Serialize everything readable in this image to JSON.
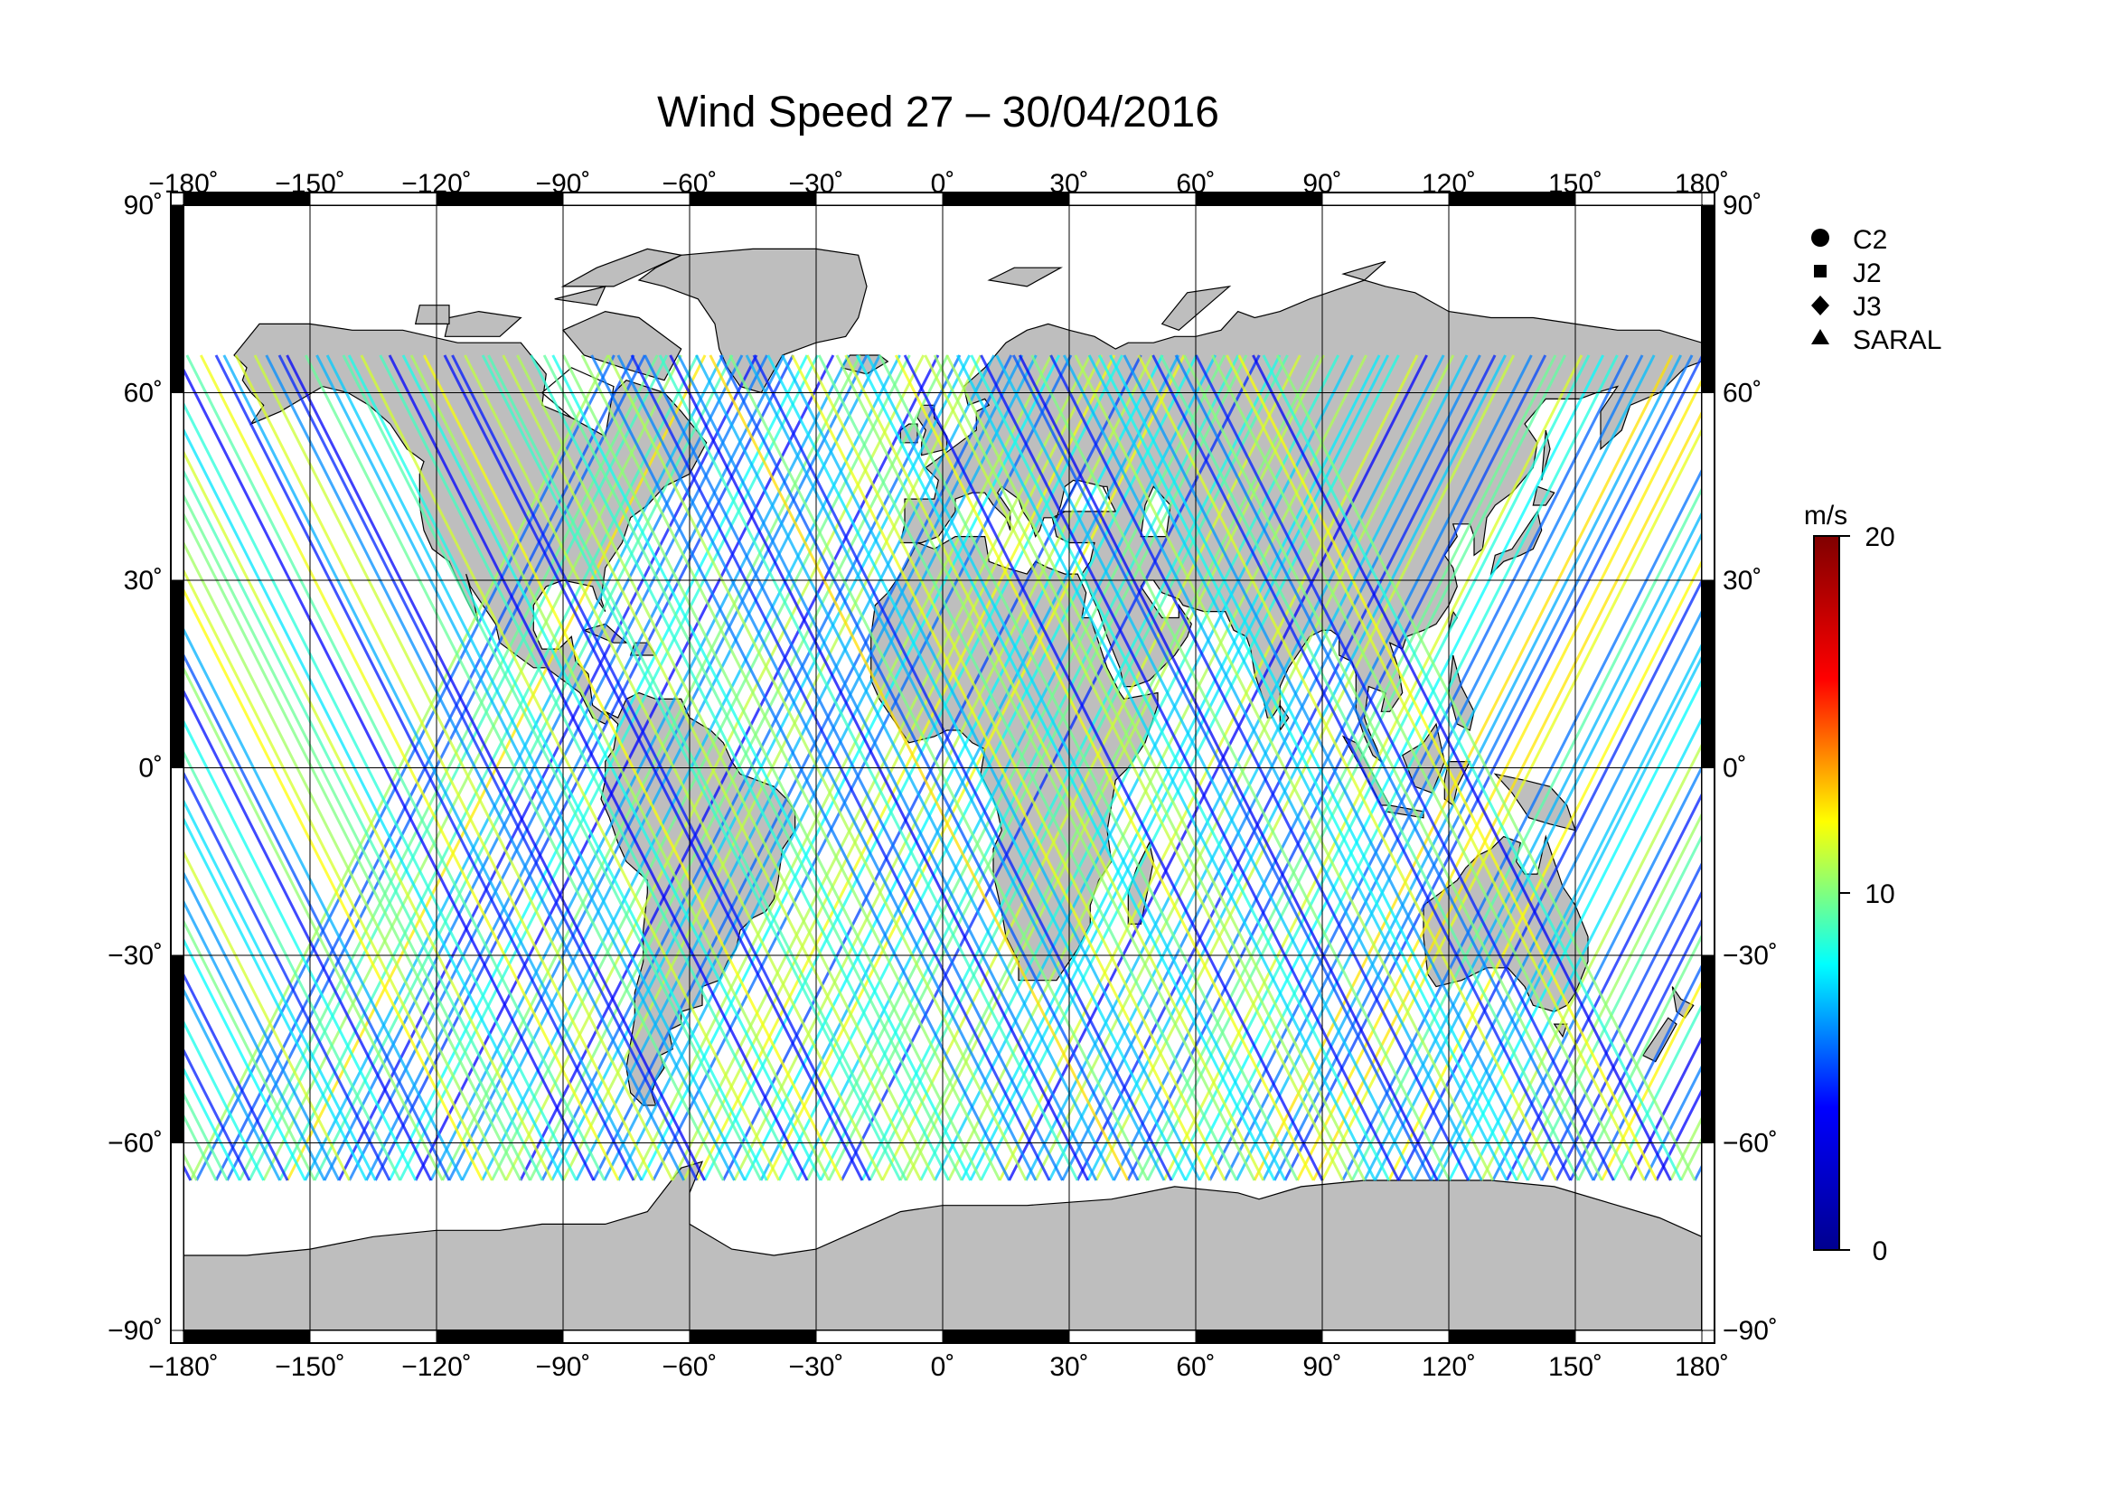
{
  "chart_data": {
    "type": "map",
    "title": "Wind Speed 27 – 30/04/2016",
    "projection": "equirectangular",
    "lon_ticks": [
      -180,
      -150,
      -120,
      -90,
      -60,
      -30,
      0,
      30,
      60,
      90,
      120,
      150,
      180
    ],
    "lat_ticks": [
      90,
      60,
      30,
      0,
      -30,
      -60,
      -90
    ],
    "lon_tick_labels": [
      "−180˚",
      "−150˚",
      "−120˚",
      "−90˚",
      "−60˚",
      "−30˚",
      "0˚",
      "30˚",
      "60˚",
      "90˚",
      "120˚",
      "150˚",
      "180˚"
    ],
    "lat_tick_labels": [
      "90˚",
      "60˚",
      "30˚",
      "0˚",
      "−30˚",
      "−60˚",
      "−90˚"
    ],
    "lon_range": [
      -180,
      180
    ],
    "lat_range": [
      -90,
      90
    ],
    "grid": true,
    "land_color": "#bebebe",
    "legend_position": "top-right",
    "legend": [
      {
        "name": "C2",
        "marker": "circle"
      },
      {
        "name": "J2",
        "marker": "square"
      },
      {
        "name": "J3",
        "marker": "diamond"
      },
      {
        "name": "SARAL",
        "marker": "triangle"
      }
    ],
    "colorbar": {
      "unit": "m/s",
      "min": 0,
      "max": 20,
      "tick_values": [
        0,
        10,
        20
      ],
      "tick_labels": [
        "0",
        "10",
        "20"
      ],
      "colormap": "jet",
      "colors": [
        "#00008f",
        "#0000ff",
        "#00ffff",
        "#ffff00",
        "#ff0000",
        "#800000"
      ]
    }
  }
}
